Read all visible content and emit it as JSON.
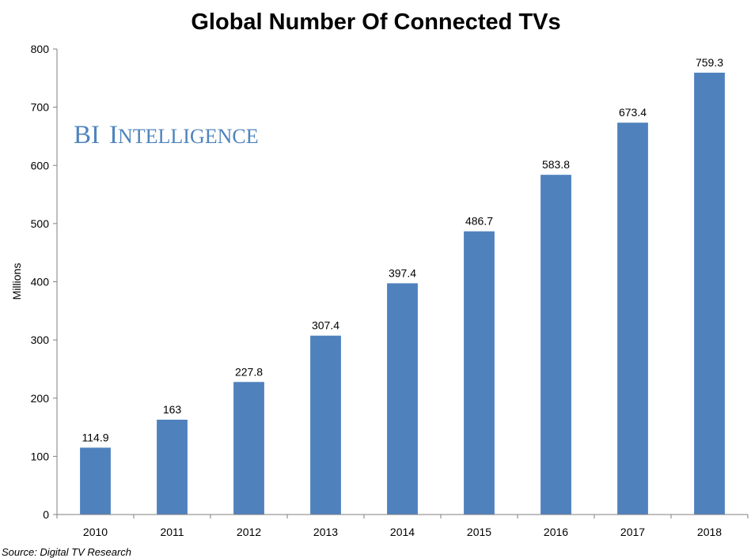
{
  "chart_data": {
    "type": "bar",
    "title": "Global Number Of Connected TVs",
    "xlabel": "",
    "ylabel": "Millions",
    "categories": [
      "2010",
      "2011",
      "2012",
      "2013",
      "2014",
      "2015",
      "2016",
      "2017",
      "2018"
    ],
    "values": [
      114.9,
      163,
      227.8,
      307.4,
      397.4,
      486.7,
      583.8,
      673.4,
      759.3
    ],
    "value_labels": [
      "114.9",
      "163",
      "227.8",
      "307.4",
      "397.4",
      "486.7",
      "583.8",
      "673.4",
      "759.3"
    ],
    "ylim": [
      0,
      800
    ],
    "yticks": [
      0,
      100,
      200,
      300,
      400,
      500,
      600,
      700,
      800
    ],
    "grid": false,
    "legend": "none",
    "bar_color": "#4f81bd"
  },
  "watermark": {
    "brand_first": "BI",
    "brand_second_initial": "I",
    "brand_second_rest": "NTELLIGENCE",
    "color": "#4f84bd"
  },
  "source": "Source: Digital TV Research"
}
